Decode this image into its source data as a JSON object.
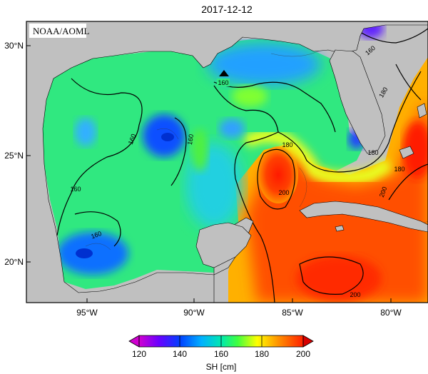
{
  "title": "2017-12-12",
  "credit": "NOAA/AOML",
  "lat_ticks": [
    "30°N",
    "25°N",
    "20°N"
  ],
  "lon_ticks": [
    "95°W",
    "90°W",
    "85°W",
    "80°W"
  ],
  "contour_labels": [
    "160",
    "160",
    "160",
    "160",
    "160",
    "180",
    "180",
    "180",
    "200",
    "200",
    "200",
    "160",
    "180"
  ],
  "colorbar": {
    "ticks": [
      "120",
      "140",
      "160",
      "180",
      "200"
    ],
    "label": "SH [cm]",
    "stops": [
      "#d000d0",
      "#6a00ff",
      "#0040ff",
      "#00b0ff",
      "#00e8b0",
      "#40ff40",
      "#ffff00",
      "#ff9000",
      "#ff2000",
      "#d80000"
    ]
  },
  "colors": {
    "land": "#c0c0c0",
    "frame": "#000000",
    "marker": "#000000"
  },
  "marker": "triangle"
}
